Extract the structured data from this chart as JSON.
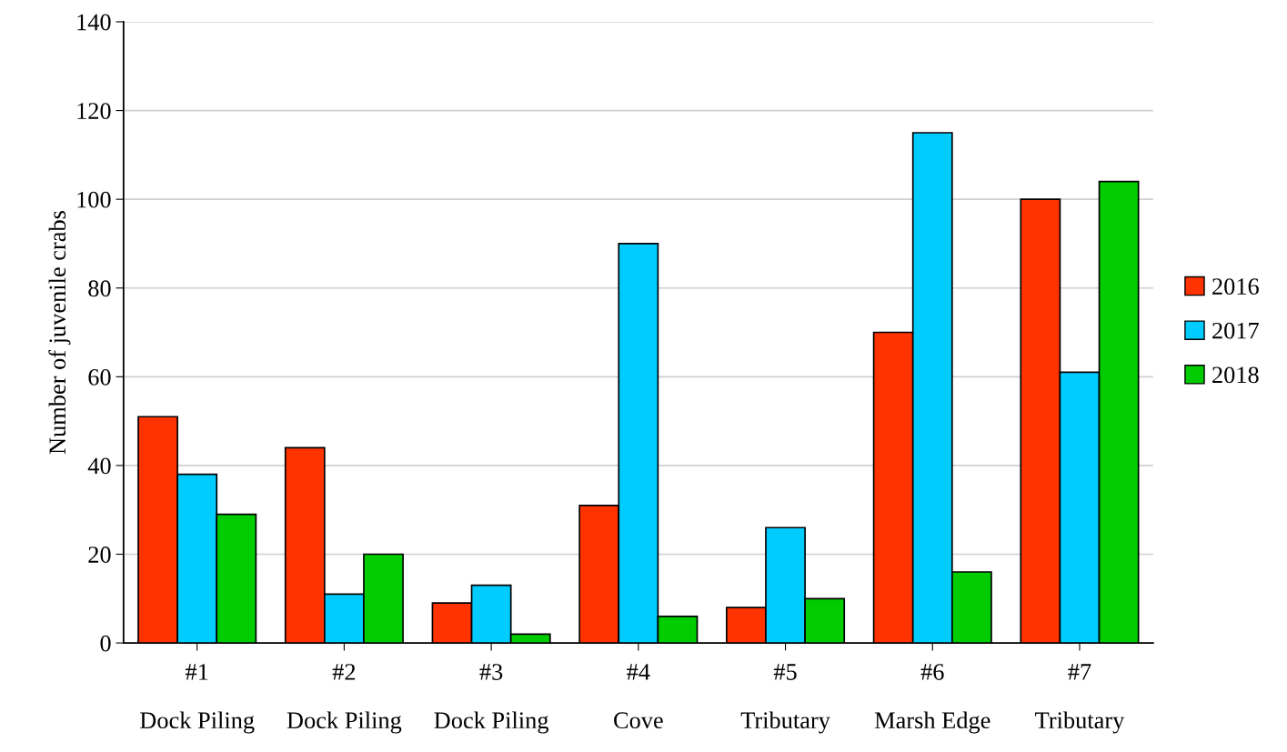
{
  "chart_data": {
    "type": "bar",
    "ylabel": "Number of juvenile crabs",
    "categories": [
      "#1\nDock Piling",
      "#2\nDock Piling",
      "#3\nDock Piling",
      "#4\nCove",
      "#5\nTributary",
      "#6\nMarsh Edge",
      "#7\nTributary"
    ],
    "series": [
      {
        "name": "2016",
        "color": "#ff3300",
        "values": [
          51,
          44,
          9,
          31,
          8,
          70,
          100
        ]
      },
      {
        "name": "2017",
        "color": "#00ccff",
        "values": [
          38,
          11,
          13,
          90,
          26,
          115,
          61
        ]
      },
      {
        "name": "2018",
        "color": "#00cc00",
        "values": [
          29,
          20,
          2,
          6,
          10,
          16,
          104
        ]
      }
    ],
    "ylim": [
      0,
      140
    ],
    "yticks": [
      0,
      20,
      40,
      60,
      80,
      100,
      120,
      140
    ],
    "grid": "y",
    "legend": "right"
  }
}
